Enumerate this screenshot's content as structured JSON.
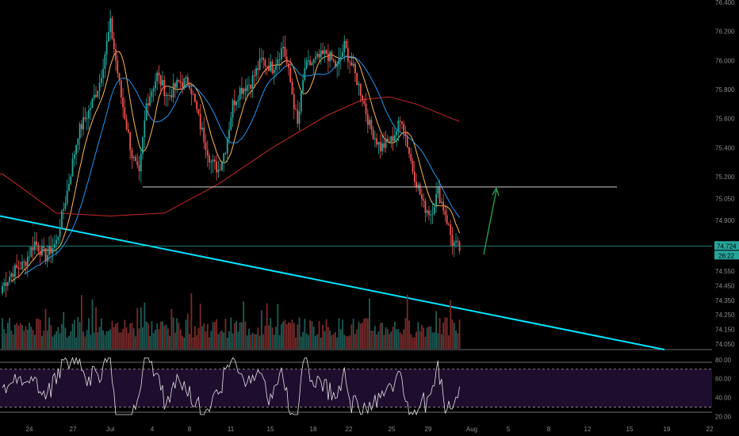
{
  "chart_data": [
    {
      "type": "candlestick",
      "panel": "price",
      "ylim": [
        74.0,
        76.4
      ],
      "y_ticks": [
        74.05,
        74.15,
        74.25,
        74.35,
        74.45,
        74.55,
        74.9,
        75.05,
        75.2,
        75.4,
        75.6,
        75.8,
        76.0,
        76.2,
        76.4
      ],
      "y_tick_labels": [
        "74.050",
        "74.150",
        "74.250",
        "74.350",
        "74.450",
        "74.550",
        "74.900",
        "75.050",
        "75.200",
        "75.400",
        "75.600",
        "75.800",
        "76.000",
        "76.200",
        "76.400"
      ],
      "x_ticks": [
        "24",
        "27",
        "Jul",
        "4",
        "8",
        "11",
        "15",
        "18",
        "22",
        "25",
        "29",
        "Aug",
        "5",
        "8",
        "12",
        "15",
        "19",
        "22"
      ],
      "anchors": [
        [
          0,
          74.45
        ],
        [
          6,
          74.55
        ],
        [
          12,
          74.6
        ],
        [
          18,
          74.75
        ],
        [
          24,
          74.65
        ],
        [
          30,
          74.75
        ],
        [
          36,
          75.1
        ],
        [
          42,
          75.5
        ],
        [
          48,
          75.65
        ],
        [
          54,
          75.85
        ],
        [
          60,
          76.25
        ],
        [
          66,
          75.75
        ],
        [
          72,
          75.35
        ],
        [
          76,
          75.2
        ],
        [
          80,
          75.7
        ],
        [
          86,
          75.9
        ],
        [
          92,
          75.75
        ],
        [
          98,
          75.85
        ],
        [
          104,
          75.85
        ],
        [
          110,
          75.55
        ],
        [
          116,
          75.3
        ],
        [
          120,
          75.25
        ],
        [
          124,
          75.4
        ],
        [
          128,
          75.7
        ],
        [
          132,
          75.8
        ],
        [
          138,
          75.85
        ],
        [
          144,
          76.0
        ],
        [
          150,
          75.95
        ],
        [
          156,
          76.1
        ],
        [
          160,
          75.85
        ],
        [
          164,
          75.55
        ],
        [
          168,
          75.95
        ],
        [
          174,
          76.0
        ],
        [
          180,
          76.05
        ],
        [
          186,
          75.95
        ],
        [
          190,
          76.1
        ],
        [
          196,
          75.9
        ],
        [
          200,
          75.75
        ],
        [
          204,
          75.55
        ],
        [
          210,
          75.4
        ],
        [
          216,
          75.45
        ],
        [
          222,
          75.6
        ],
        [
          228,
          75.25
        ],
        [
          234,
          75.0
        ],
        [
          238,
          74.95
        ],
        [
          242,
          75.1
        ],
        [
          246,
          74.95
        ],
        [
          250,
          74.75
        ],
        [
          254,
          74.7
        ]
      ],
      "overlays": {
        "horizontal_line_price": 75.13,
        "current_price_label": "74.724",
        "countdown_label": "26:22",
        "current_price": 74.724
      },
      "colors": {
        "up": "#26a69a",
        "down": "#ef5350",
        "ma_fast": "#ffb74d",
        "ma_mid": "#2196f3",
        "ma_slow": "#c62828",
        "trendline": "#00e5ff",
        "arrow": "#26a65b",
        "hline": "#d0d0d0"
      }
    },
    {
      "type": "line",
      "panel": "oscillator",
      "ylim": [
        17,
        84
      ],
      "y_ticks": [
        20.0,
        40.0,
        60.0,
        80.0
      ],
      "y_tick_labels": [
        "20.00",
        "40.00",
        "60.00",
        "80.00"
      ],
      "levels": [
        70,
        30
      ],
      "colors": {
        "line": "#e0e0e0",
        "band": "#1f0d2e",
        "level": "#aaaaaa"
      }
    }
  ]
}
